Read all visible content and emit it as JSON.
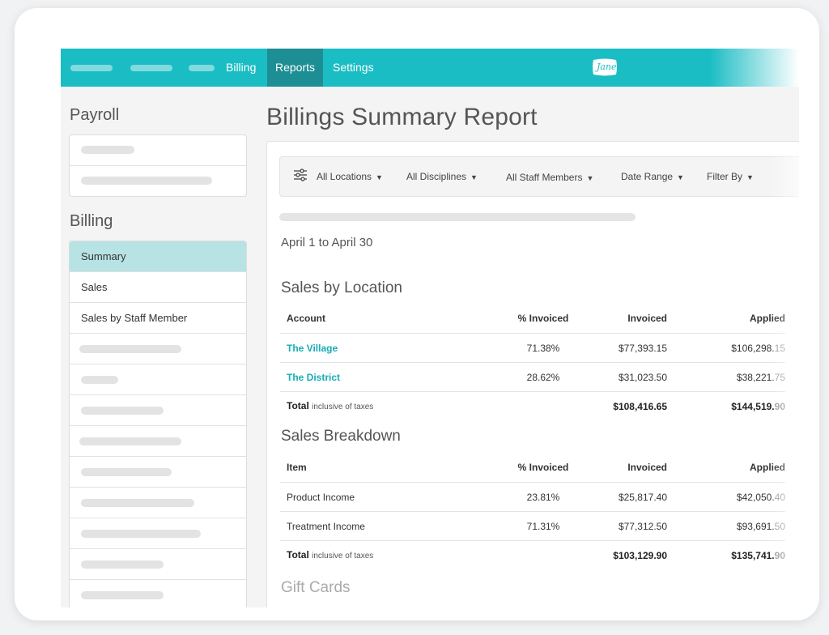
{
  "nav": {
    "items": [
      "Billing",
      "Reports",
      "Settings"
    ],
    "active": "Reports",
    "logo_text": "Jane",
    "accent_color": "#1bbdc4",
    "active_color": "#1d8e93"
  },
  "sidebar": {
    "payroll_heading": "Payroll",
    "billing_heading": "Billing",
    "billing_items": [
      "Summary",
      "Sales",
      "Sales by Staff Member"
    ],
    "selected_item": "Summary",
    "selected_color": "#b7e3e5"
  },
  "main": {
    "title": "Billings Summary Report",
    "filters": {
      "locations": "All Locations",
      "disciplines": "All Disciplines",
      "staff": "All Staff Members",
      "date_range": "Date Range",
      "filter_by": "Filter By"
    },
    "date_range_text": "April 1 to April 30",
    "sales_by_location": {
      "heading": "Sales by Location",
      "columns": [
        "Account",
        "% Invoiced",
        "Invoiced",
        "Applied"
      ],
      "rows": [
        {
          "account": "The Village",
          "pct": "71.38%",
          "invoiced": "$77,393.15",
          "applied_main": "$106,298.",
          "applied_tail": "15"
        },
        {
          "account": "The District",
          "pct": "28.62%",
          "invoiced": "$31,023.50",
          "applied_main": "$38,221.",
          "applied_tail": "75"
        }
      ],
      "total": {
        "label": "Total",
        "note": "inclusive of taxes",
        "invoiced": "$108,416.65",
        "applied_main": "$144,519.",
        "applied_tail": "90"
      }
    },
    "sales_breakdown": {
      "heading": "Sales Breakdown",
      "columns": [
        "Item",
        "% Invoiced",
        "Invoiced",
        "Applied"
      ],
      "rows": [
        {
          "item": "Product Income",
          "pct": "23.81%",
          "invoiced": "$25,817.40",
          "applied_main": "$42,050.",
          "applied_tail": "40"
        },
        {
          "item": "Treatment Income",
          "pct": "71.31%",
          "invoiced": "$77,312.50",
          "applied_main": "$93,691.",
          "applied_tail": "50"
        }
      ],
      "total": {
        "label": "Total",
        "note": "inclusive of taxes",
        "invoiced": "$103,129.90",
        "applied_main": "$135,741.",
        "applied_tail": "90"
      }
    },
    "gift_cards_heading": "Gift Cards"
  }
}
